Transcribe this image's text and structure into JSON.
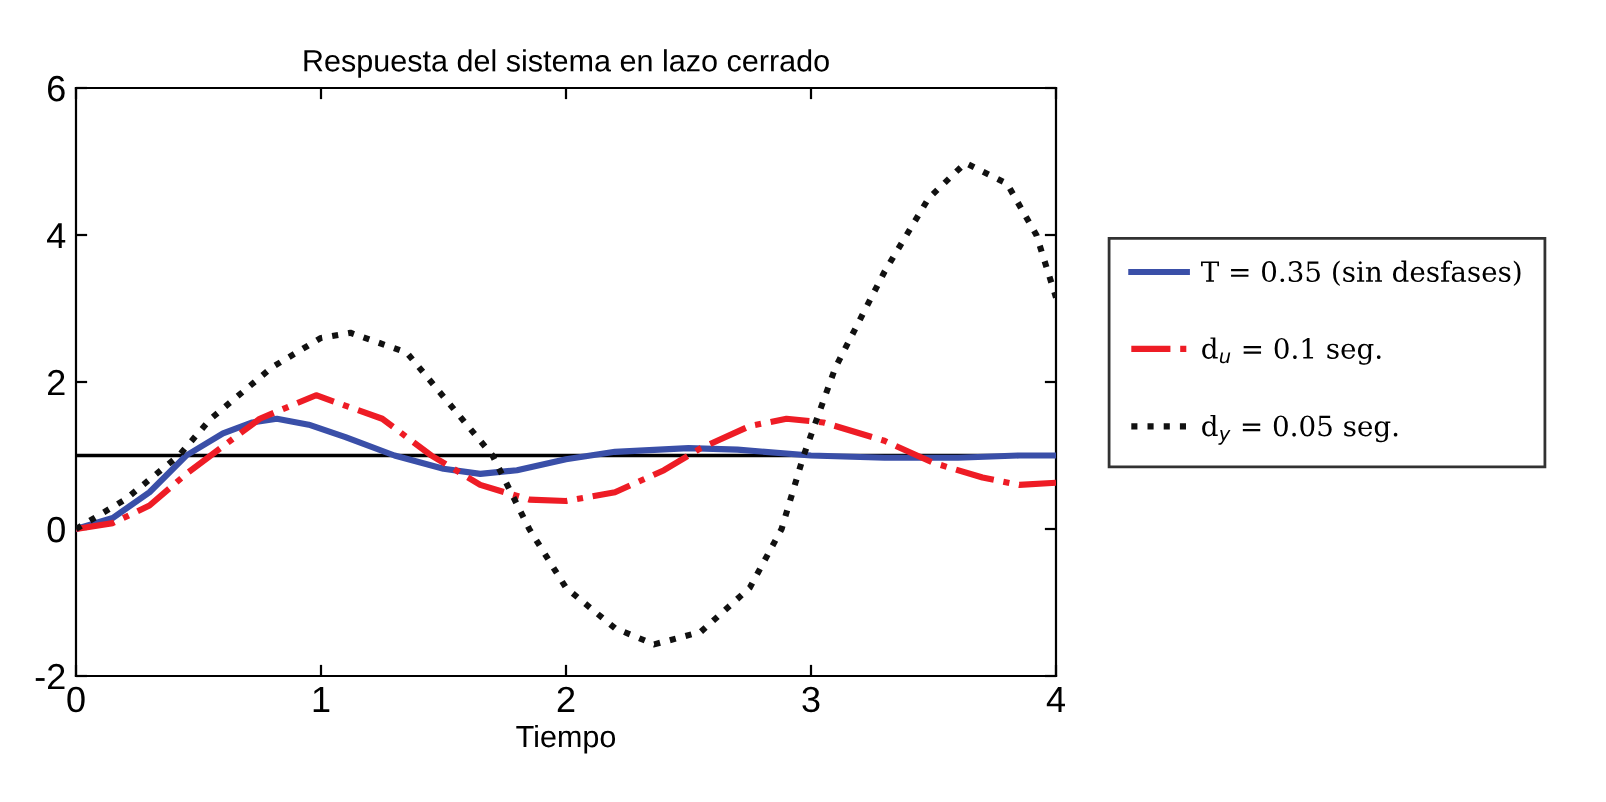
{
  "chart_data": {
    "type": "line",
    "title": "Respuesta del sistema en lazo cerrado",
    "xlabel": "Tiempo",
    "xlim": [
      0,
      4
    ],
    "xticks": [
      0,
      1,
      2,
      3,
      4
    ],
    "ylim": [
      -2,
      6
    ],
    "yticks": [
      -2,
      0,
      2,
      4,
      6
    ],
    "grid": false,
    "legend": "right",
    "ref_lines": [
      {
        "axis": "y",
        "value": 1,
        "color": "#000000",
        "line_style": "solid"
      }
    ],
    "series": [
      {
        "name": "T = 0.35 (sin desfases)",
        "color": "#3a4fa8",
        "line_style": "solid",
        "x": [
          0,
          0.15,
          0.3,
          0.45,
          0.6,
          0.72,
          0.82,
          0.95,
          1.1,
          1.3,
          1.5,
          1.65,
          1.8,
          2.0,
          2.2,
          2.5,
          2.7,
          3.0,
          3.3,
          3.6,
          3.85,
          4.0
        ],
        "values": [
          0,
          0.15,
          0.5,
          1.0,
          1.3,
          1.45,
          1.5,
          1.42,
          1.25,
          1.0,
          0.82,
          0.75,
          0.8,
          0.95,
          1.05,
          1.1,
          1.08,
          1.0,
          0.97,
          0.97,
          1.0,
          1.0
        ]
      },
      {
        "name": "d$_{u}$ = 0.1 seg.",
        "color": "#ee1c25",
        "line_style": "dashdot",
        "x": [
          0,
          0.15,
          0.3,
          0.45,
          0.55,
          0.75,
          0.98,
          1.25,
          1.45,
          1.65,
          1.85,
          2.0,
          2.2,
          2.4,
          2.55,
          2.75,
          2.9,
          3.05,
          3.3,
          3.5,
          3.7,
          3.85,
          4.0
        ],
        "values": [
          0,
          0.08,
          0.32,
          0.75,
          1.0,
          1.5,
          1.82,
          1.5,
          1.0,
          0.6,
          0.4,
          0.38,
          0.5,
          0.8,
          1.1,
          1.4,
          1.5,
          1.45,
          1.2,
          0.9,
          0.7,
          0.6,
          0.63
        ]
      },
      {
        "name": "d$_{y}$ = 0.05 seg.",
        "color": "#111111",
        "line_style": "dotted",
        "x": [
          0,
          0.2,
          0.42,
          0.55,
          0.8,
          1.0,
          1.12,
          1.35,
          1.55,
          1.7,
          1.85,
          2.0,
          2.2,
          2.36,
          2.55,
          2.75,
          2.88,
          2.97,
          3.1,
          3.3,
          3.48,
          3.63,
          3.8,
          3.92,
          4.0
        ],
        "values": [
          0,
          0.4,
          1.0,
          1.5,
          2.2,
          2.6,
          2.67,
          2.4,
          1.6,
          1.0,
          0.0,
          -0.8,
          -1.35,
          -1.57,
          -1.4,
          -0.8,
          0.0,
          1.0,
          2.2,
          3.5,
          4.5,
          4.98,
          4.7,
          4.0,
          3.15
        ]
      }
    ]
  }
}
